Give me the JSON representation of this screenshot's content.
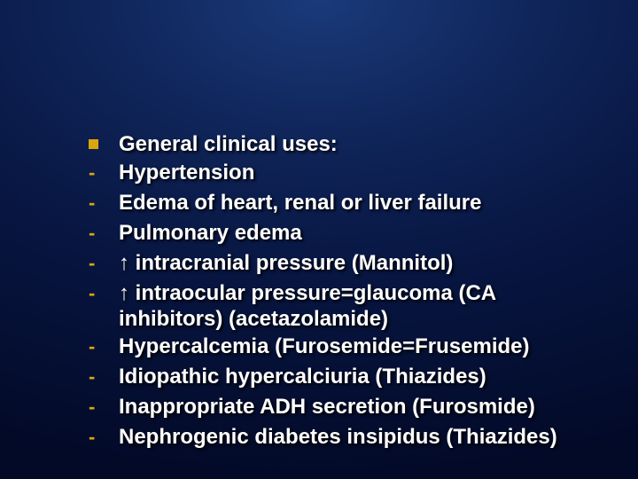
{
  "slide": {
    "background_gradient": {
      "type": "radial",
      "stops": [
        "#1a3a7a",
        "#0f2458",
        "#071540",
        "#030a28"
      ]
    },
    "bullet_color": "#d9a60f",
    "text_color": "#ffffff",
    "text_fontsize": 24,
    "text_fontweight": "bold",
    "text_shadow": "2px 2px 3px #000000",
    "items": [
      {
        "marker": "square",
        "text": "General clinical uses:"
      },
      {
        "marker": "dash",
        "text": "Hypertension"
      },
      {
        "marker": "dash",
        "text": "Edema of heart, renal or liver failure"
      },
      {
        "marker": "dash",
        "text": "Pulmonary edema"
      },
      {
        "marker": "dash",
        "text": "↑ intracranial pressure (Mannitol)"
      },
      {
        "marker": "dash",
        "text": "↑ intraocular pressure=glaucoma (CA inhibitors) (acetazolamide)"
      },
      {
        "marker": "dash",
        "text": "Hypercalcemia (Furosemide=Frusemide)"
      },
      {
        "marker": "dash",
        "text": "Idiopathic hypercalciuria (Thiazides)"
      },
      {
        "marker": "dash",
        "text": "Inappropriate ADH secretion (Furosmide)"
      },
      {
        "marker": "dash",
        "text": "Nephrogenic diabetes insipidus (Thiazides)"
      }
    ]
  }
}
